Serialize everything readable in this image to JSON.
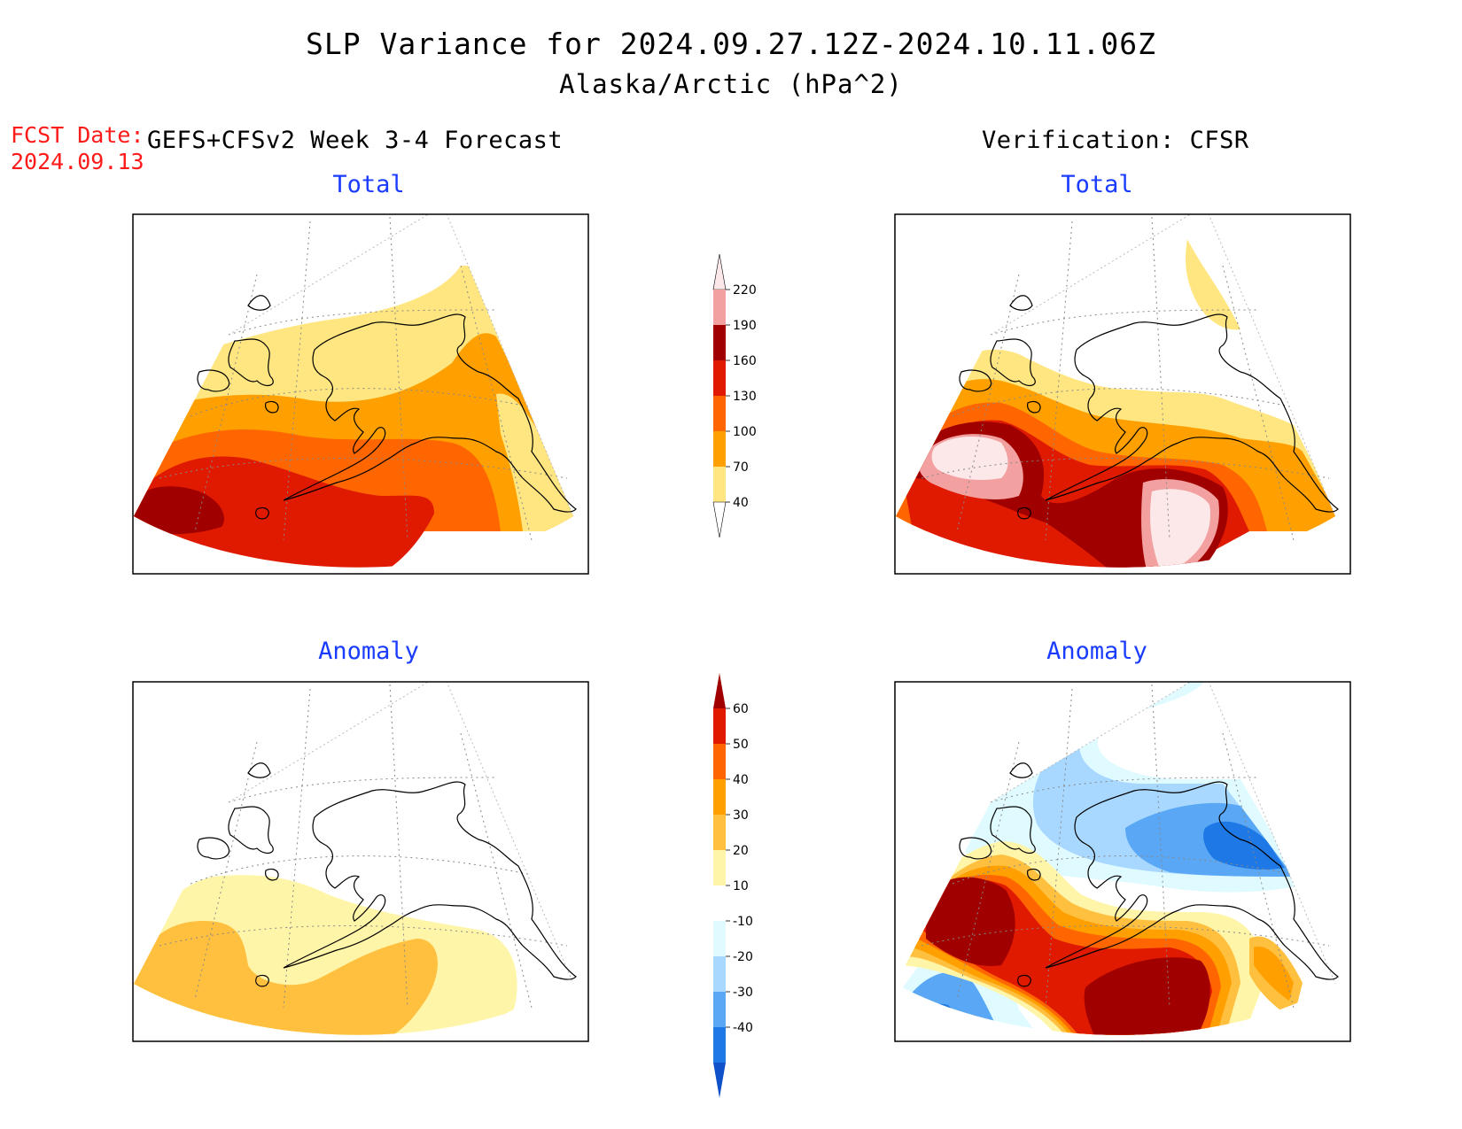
{
  "title": {
    "line1": "SLP Variance for 2024.09.27.12Z-2024.10.11.06Z",
    "line2": "Alaska/Arctic (hPa^2)"
  },
  "forecast": {
    "date_label": "FCST Date:",
    "date_value": "2024.09.13",
    "model": "GEFS+CFSv2 Week 3-4 Forecast"
  },
  "verification": {
    "label": "Verification: CFSR"
  },
  "panels": [
    {
      "id": "forecast-total",
      "title": "Total"
    },
    {
      "id": "verification-total",
      "title": "Total"
    },
    {
      "id": "forecast-anomaly",
      "title": "Anomaly"
    },
    {
      "id": "verification-anomaly",
      "title": "Anomaly"
    }
  ],
  "colorbars": {
    "total": {
      "labels": [
        "220",
        "190",
        "160",
        "130",
        "100",
        "70",
        "40"
      ],
      "colors": [
        "#fce8e8",
        "#f2a0a0",
        "#a00000",
        "#e01a00",
        "#ff6600",
        "#ffa000",
        "#ffe680",
        "#ffffff"
      ]
    },
    "anomaly": {
      "labels": [
        "60",
        "50",
        "40",
        "30",
        "20",
        "10",
        "-10",
        "-20",
        "-30",
        "-40"
      ],
      "colors": [
        "#a00000",
        "#e01a00",
        "#ff6600",
        "#ffa000",
        "#ffc040",
        "#fff5a8",
        "#ffffff",
        "#e0fbff",
        "#a8d8ff",
        "#5aa8f5",
        "#1e78e6",
        "#1050c8"
      ]
    }
  },
  "colors": {
    "forecast_text": "#ff1a1a",
    "panel_title": "#1a3cff"
  }
}
